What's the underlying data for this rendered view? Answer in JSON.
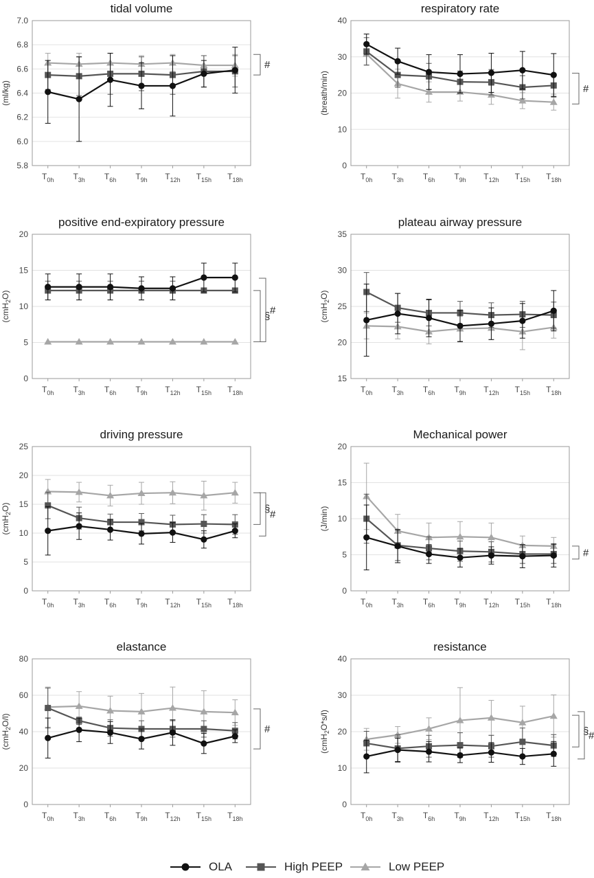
{
  "timepoints": [
    {
      "base": "T",
      "sub": "0h"
    },
    {
      "base": "T",
      "sub": "3h"
    },
    {
      "base": "T",
      "sub": "6h"
    },
    {
      "base": "T",
      "sub": "9h"
    },
    {
      "base": "T",
      "sub": "12h"
    },
    {
      "base": "T",
      "sub": "15h"
    },
    {
      "base": "T",
      "sub": "18h"
    }
  ],
  "legend": [
    {
      "name": "OLA",
      "marker": "circle",
      "color": "#111111"
    },
    {
      "name": "High PEEP",
      "marker": "square",
      "color": "#555555"
    },
    {
      "name": "Low PEEP",
      "marker": "triangle",
      "color": "#a6a6a6"
    }
  ],
  "chart_data": [
    {
      "type": "line",
      "title": "tidal volume",
      "ylabel": [
        {
          "t": "(ml/kg)"
        }
      ],
      "ylim": [
        5.8,
        7.0
      ],
      "yticks": [
        5.8,
        6.0,
        6.2,
        6.4,
        6.6,
        6.8,
        7.0
      ],
      "tick_decimals": 1,
      "series": [
        {
          "name": "OLA",
          "values": [
            6.41,
            6.35,
            6.51,
            6.46,
            6.46,
            6.56,
            6.59
          ],
          "err": [
            0.26,
            0.35,
            0.22,
            0.19,
            0.25,
            0.11,
            0.19
          ]
        },
        {
          "name": "High PEEP",
          "values": [
            6.55,
            6.54,
            6.56,
            6.56,
            6.55,
            6.58,
            6.58
          ],
          "err": [
            0.12,
            0.16,
            0.17,
            0.14,
            0.16,
            0.13,
            0.13
          ]
        },
        {
          "name": "Low PEEP",
          "values": [
            6.65,
            6.64,
            6.65,
            6.64,
            6.65,
            6.63,
            6.63
          ],
          "err": [
            0.08,
            0.09,
            0.08,
            0.07,
            0.07,
            0.08,
            0.09
          ]
        }
      ],
      "significance": [
        {
          "symbol": "#",
          "range": [
            6.55,
            6.72
          ]
        }
      ]
    },
    {
      "type": "line",
      "title": "respiratory rate",
      "ylabel": [
        {
          "t": "(breath/min)"
        }
      ],
      "ylim": [
        0,
        40
      ],
      "yticks": [
        0,
        10,
        20,
        30,
        40
      ],
      "tick_decimals": 0,
      "series": [
        {
          "name": "OLA",
          "values": [
            33.5,
            28.8,
            25.8,
            25.3,
            25.6,
            26.3,
            25.0
          ],
          "err": [
            2.8,
            3.6,
            4.8,
            5.3,
            5.4,
            5.2,
            5.9
          ]
        },
        {
          "name": "High PEEP",
          "values": [
            31.5,
            25.0,
            24.6,
            23.1,
            23.0,
            21.6,
            22.1
          ],
          "err": [
            3.8,
            3.4,
            3.6,
            3.0,
            3.5,
            3.2,
            3.2
          ]
        },
        {
          "name": "Low PEEP",
          "values": [
            30.8,
            22.6,
            20.3,
            20.3,
            19.5,
            17.9,
            17.5
          ],
          "err": [
            3.0,
            4.0,
            2.8,
            2.5,
            2.6,
            2.2,
            2.2
          ]
        }
      ],
      "significance": [
        {
          "symbol": "#",
          "range": [
            17.0,
            25.5
          ]
        }
      ]
    },
    {
      "type": "line",
      "title": "positive end-expiratory pressure",
      "ylabel": [
        {
          "t": "(cmH"
        },
        {
          "t": "2",
          "sub": true
        },
        {
          "t": "O)"
        }
      ],
      "ylim": [
        0,
        20
      ],
      "yticks": [
        0,
        5,
        10,
        15,
        20
      ],
      "tick_decimals": 0,
      "series": [
        {
          "name": "OLA",
          "values": [
            12.7,
            12.7,
            12.7,
            12.5,
            12.5,
            14.0,
            14.0
          ],
          "err": [
            1.8,
            1.8,
            1.8,
            1.6,
            1.6,
            2.0,
            2.0
          ]
        },
        {
          "name": "High PEEP",
          "values": [
            12.2,
            12.2,
            12.2,
            12.2,
            12.2,
            12.2,
            12.2
          ],
          "err": [
            1.3,
            1.3,
            1.3,
            1.3,
            1.3,
            0,
            0
          ]
        },
        {
          "name": "Low PEEP",
          "values": [
            5.1,
            5.1,
            5.1,
            5.1,
            5.1,
            5.1,
            5.1
          ],
          "err": [
            0,
            0,
            0,
            0,
            0,
            0,
            0
          ]
        }
      ],
      "significance": [
        {
          "symbol": "§",
          "range": [
            5.1,
            12.2
          ]
        },
        {
          "symbol": "#",
          "range": [
            5.1,
            13.9
          ]
        }
      ]
    },
    {
      "type": "line",
      "title": "plateau airway pressure",
      "ylabel": [
        {
          "t": "(cmH"
        },
        {
          "t": "2",
          "sub": true
        },
        {
          "t": "O)"
        }
      ],
      "ylim": [
        15,
        35
      ],
      "yticks": [
        15,
        20,
        25,
        30,
        35
      ],
      "tick_decimals": 0,
      "series": [
        {
          "name": "OLA",
          "values": [
            23.1,
            24.0,
            23.4,
            22.3,
            22.6,
            23.0,
            24.4
          ],
          "err": [
            5.0,
            2.8,
            2.6,
            2.2,
            2.2,
            2.4,
            2.8
          ]
        },
        {
          "name": "High PEEP",
          "values": [
            27.0,
            24.8,
            24.1,
            24.1,
            23.8,
            23.9,
            23.8
          ],
          "err": [
            2.7,
            2.0,
            1.8,
            1.6,
            1.7,
            1.8,
            1.8
          ]
        },
        {
          "name": "Low PEEP",
          "values": [
            22.3,
            22.2,
            21.5,
            21.9,
            22.0,
            21.5,
            22.1
          ],
          "err": [
            1.8,
            1.7,
            1.7,
            1.7,
            1.6,
            2.5,
            1.5
          ]
        }
      ],
      "significance": []
    },
    {
      "type": "line",
      "title": "driving pressure",
      "ylabel": [
        {
          "t": "(cmH"
        },
        {
          "t": "2",
          "sub": true
        },
        {
          "t": "O)"
        }
      ],
      "ylim": [
        0,
        25
      ],
      "yticks": [
        0,
        5,
        10,
        15,
        20,
        25
      ],
      "tick_decimals": 0,
      "series": [
        {
          "name": "OLA",
          "values": [
            10.4,
            11.2,
            10.6,
            9.9,
            10.1,
            8.9,
            10.4
          ],
          "err": [
            4.2,
            2.3,
            1.8,
            1.8,
            1.7,
            1.5,
            1.2
          ]
        },
        {
          "name": "High PEEP",
          "values": [
            14.8,
            12.6,
            11.9,
            11.9,
            11.5,
            11.6,
            11.5
          ],
          "err": [
            2.3,
            1.9,
            1.4,
            1.5,
            1.6,
            1.6,
            1.7
          ]
        },
        {
          "name": "Low PEEP",
          "values": [
            17.2,
            17.1,
            16.5,
            16.9,
            17.0,
            16.5,
            17.0
          ],
          "err": [
            2.1,
            1.7,
            1.8,
            1.9,
            1.9,
            2.5,
            1.8
          ]
        }
      ],
      "significance": [
        {
          "symbol": "§",
          "range": [
            11.5,
            17.0
          ]
        },
        {
          "symbol": "#",
          "range": [
            9.5,
            17.0
          ]
        }
      ]
    },
    {
      "type": "line",
      "title": "Mechanical power",
      "ylabel": [
        {
          "t": "(J/min)"
        }
      ],
      "ylim": [
        0,
        20
      ],
      "yticks": [
        0,
        5,
        10,
        15,
        20
      ],
      "tick_decimals": 0,
      "series": [
        {
          "name": "OLA",
          "values": [
            7.4,
            6.2,
            5.1,
            4.6,
            4.9,
            4.8,
            4.9
          ],
          "err": [
            4.5,
            2.3,
            1.3,
            1.3,
            1.2,
            1.6,
            1.6
          ]
        },
        {
          "name": "High PEEP",
          "values": [
            10.0,
            6.3,
            5.9,
            5.5,
            5.4,
            5.1,
            5.1
          ],
          "err": [
            3.4,
            2.1,
            1.6,
            1.4,
            1.4,
            1.3,
            1.3
          ]
        },
        {
          "name": "Low PEEP",
          "values": [
            13.1,
            8.3,
            7.4,
            7.5,
            7.4,
            6.3,
            6.2
          ],
          "err": [
            4.6,
            2.3,
            2.0,
            2.1,
            2.0,
            1.3,
            1.2
          ]
        }
      ],
      "significance": [
        {
          "symbol": "#",
          "range": [
            4.4,
            6.2
          ]
        }
      ]
    },
    {
      "type": "line",
      "title": "elastance",
      "ylabel": [
        {
          "t": "(cmH"
        },
        {
          "t": "2",
          "sub": true
        },
        {
          "t": "O/l)"
        }
      ],
      "ylim": [
        0,
        80
      ],
      "yticks": [
        0,
        20,
        40,
        60,
        80
      ],
      "tick_decimals": 0,
      "series": [
        {
          "name": "OLA",
          "values": [
            36.5,
            41.0,
            39.5,
            36.0,
            39.5,
            33.5,
            37.5
          ],
          "err": [
            11.0,
            6.5,
            6.0,
            5.5,
            7.0,
            5.5,
            3.5
          ]
        },
        {
          "name": "High PEEP",
          "values": [
            53.0,
            46.0,
            42.0,
            41.5,
            41.5,
            41.5,
            40.5
          ],
          "err": [
            11.0,
            2.0,
            4.5,
            4.5,
            4.5,
            4.5,
            4.5
          ]
        },
        {
          "name": "Low PEEP",
          "values": [
            53.5,
            54.0,
            51.5,
            51.0,
            53.0,
            51.0,
            50.5
          ],
          "err": [
            11.0,
            8.0,
            8.0,
            10.0,
            11.5,
            11.5,
            7.0
          ]
        }
      ],
      "significance": [
        {
          "symbol": "#",
          "range": [
            30.5,
            52.5
          ]
        }
      ]
    },
    {
      "type": "line",
      "title": "resistance",
      "ylabel": [
        {
          "t": "(cmH"
        },
        {
          "t": "2",
          "sub": true
        },
        {
          "t": "O*s/l)"
        }
      ],
      "ylim": [
        0,
        40
      ],
      "yticks": [
        0,
        10,
        20,
        30,
        40
      ],
      "tick_decimals": 0,
      "series": [
        {
          "name": "OLA",
          "values": [
            13.2,
            15.0,
            14.5,
            13.5,
            14.3,
            13.2,
            13.9
          ],
          "err": [
            4.5,
            3.2,
            2.8,
            2.0,
            2.7,
            2.2,
            3.4
          ]
        },
        {
          "name": "High PEEP",
          "values": [
            16.8,
            15.4,
            16.0,
            16.3,
            16.0,
            17.2,
            16.2
          ],
          "err": [
            3.3,
            3.8,
            3.0,
            3.4,
            3.0,
            3.8,
            3.0
          ]
        },
        {
          "name": "Low PEEP",
          "values": [
            17.9,
            19.1,
            20.8,
            23.1,
            23.8,
            22.5,
            24.3
          ],
          "err": [
            3.0,
            2.3,
            3.0,
            9.0,
            4.8,
            4.5,
            5.8
          ]
        }
      ],
      "significance": [
        {
          "symbol": "§",
          "range": [
            15.8,
            24.5
          ]
        },
        {
          "symbol": "#",
          "range": [
            12.5,
            25.5
          ]
        }
      ]
    }
  ]
}
